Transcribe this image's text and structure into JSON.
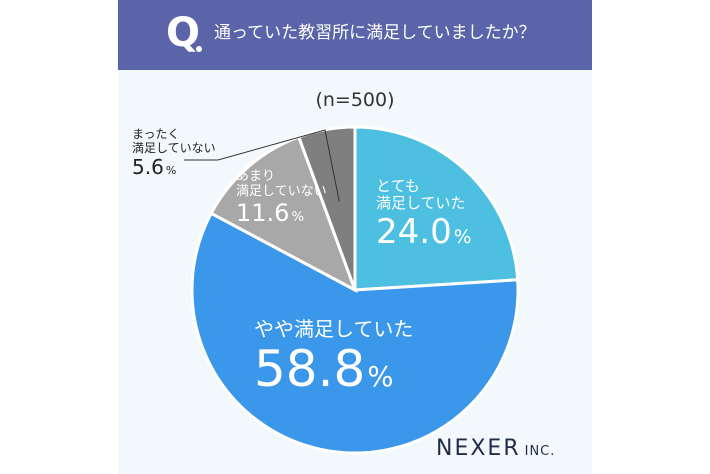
{
  "header": {
    "q_letter": "Q",
    "title": "通っていた教習所に満足していましたか？"
  },
  "sample_size": "(n=500)",
  "colors": {
    "header_bg": "#5b64a8",
    "very_satisfied": "#4dbfe0",
    "somewhat_satisfied": "#3a97ea",
    "not_very_satisfied": "#a8a8a8",
    "not_at_all_satisfied": "#7f7f7f",
    "card_bg": "#f2f8fb"
  },
  "chart_data": {
    "type": "pie",
    "start_angle_deg": 0,
    "direction": "clockwise",
    "slices": [
      {
        "label_lines": [
          "とても",
          "満足していた"
        ],
        "value": 24.0,
        "display": "24.0",
        "unit": "%",
        "color": "#4dbfe0"
      },
      {
        "label_lines": [
          "やや満足していた"
        ],
        "value": 58.8,
        "display": "58.8",
        "unit": "%",
        "color": "#3a97ea"
      },
      {
        "label_lines": [
          "あまり",
          "満足していない"
        ],
        "value": 11.6,
        "display": "11.6",
        "unit": "%",
        "color": "#a8a8a8"
      },
      {
        "label_lines": [
          "まったく",
          "満足していない"
        ],
        "value": 5.6,
        "display": "5.6",
        "unit": "%",
        "color": "#7f7f7f"
      }
    ]
  },
  "logo": {
    "name": "NEXER",
    "suffix": "INC."
  }
}
